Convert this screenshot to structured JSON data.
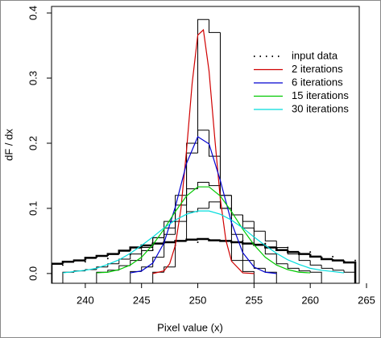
{
  "chart_data": {
    "type": "line",
    "x_label": "Pixel value (x)",
    "y_label": "dF / dx",
    "xlim": [
      237,
      265
    ],
    "ylim": [
      -0.015,
      0.41
    ],
    "xticks": [
      240,
      245,
      250,
      255,
      260,
      265
    ],
    "yticks": [
      {
        "value": 0,
        "label": "0.0"
      },
      0.1,
      0.2,
      0.3,
      0.4
    ],
    "legend": "upper right",
    "histograms": [
      {
        "color": "#000000",
        "linewidth": 1,
        "bins": [
          246,
          247,
          248,
          249,
          250,
          251,
          252,
          253,
          254,
          255
        ],
        "values": [
          0.002,
          0.01,
          0.05,
          0.2,
          0.39,
          0.37,
          0.1,
          0.02,
          0.003
        ]
      },
      {
        "color": "#000000",
        "linewidth": 1,
        "bins": [
          244,
          245,
          246,
          247,
          248,
          249,
          250,
          251,
          252,
          253,
          254,
          255,
          256,
          257
        ],
        "values": [
          0.003,
          0.01,
          0.025,
          0.06,
          0.12,
          0.185,
          0.22,
          0.18,
          0.12,
          0.06,
          0.02,
          0.008,
          0.002
        ]
      },
      {
        "color": "#000000",
        "linewidth": 1,
        "bins": [
          241,
          242,
          243,
          244,
          245,
          246,
          247,
          248,
          249,
          250,
          251,
          252,
          253,
          254,
          255,
          256,
          257,
          258,
          259,
          260,
          261
        ],
        "values": [
          0.002,
          0.005,
          0.012,
          0.02,
          0.035,
          0.055,
          0.08,
          0.105,
          0.13,
          0.14,
          0.135,
          0.12,
          0.09,
          0.07,
          0.045,
          0.03,
          0.015,
          0.008,
          0.004,
          0.002
        ]
      },
      {
        "color": "#000000",
        "linewidth": 1,
        "bins": [
          238,
          239,
          240,
          241,
          242,
          243,
          244,
          245,
          246,
          247,
          248,
          249,
          250,
          251,
          252,
          253,
          254,
          255,
          256,
          257,
          258,
          259,
          260,
          261,
          262,
          263,
          264
        ],
        "values": [
          0.002,
          0.004,
          0.006,
          0.01,
          0.015,
          0.022,
          0.03,
          0.04,
          0.055,
          0.07,
          0.08,
          0.095,
          0.1,
          0.11,
          0.1,
          0.09,
          0.08,
          0.065,
          0.05,
          0.04,
          0.03,
          0.02,
          0.013,
          0.008,
          0.005,
          0.002
        ]
      },
      {
        "color": "#000000",
        "linewidth": 2.5,
        "bins": [
          237,
          238,
          239,
          240,
          241,
          242,
          243,
          244,
          245,
          246,
          247,
          248,
          249,
          250,
          251,
          252,
          253,
          254,
          255,
          256,
          257,
          258,
          259,
          260,
          261,
          262,
          263,
          264
        ],
        "values": [
          0.015,
          0.018,
          0.02,
          0.024,
          0.027,
          0.03,
          0.035,
          0.04,
          0.043,
          0.046,
          0.048,
          0.05,
          0.052,
          0.053,
          0.051,
          0.05,
          0.048,
          0.046,
          0.044,
          0.04,
          0.036,
          0.033,
          0.03,
          0.026,
          0.022,
          0.02,
          0.017
        ]
      }
    ],
    "series": [
      {
        "name": "input data",
        "color": "#000000",
        "style": "dotted",
        "x": [
          238,
          240,
          242,
          244,
          246,
          248,
          250,
          252,
          254,
          256,
          258,
          260,
          262,
          264
        ],
        "values": [
          0.013,
          0.018,
          0.023,
          0.029,
          0.036,
          0.043,
          0.048,
          0.051,
          0.05,
          0.046,
          0.04,
          0.033,
          0.026,
          0.02
        ]
      },
      {
        "name": "2 iterations",
        "color": "#d00000",
        "style": "solid",
        "x": [
          246,
          247,
          247.5,
          248,
          248.5,
          249,
          249.5,
          250,
          250.5,
          251,
          251.5,
          252,
          252.5,
          253,
          254,
          255
        ],
        "values": [
          0.0,
          0.004,
          0.015,
          0.043,
          0.099,
          0.189,
          0.292,
          0.366,
          0.374,
          0.311,
          0.21,
          0.115,
          0.051,
          0.019,
          0.001,
          0.0
        ]
      },
      {
        "name": "6 iterations",
        "color": "#0000d0",
        "style": "solid",
        "x": [
          244,
          245,
          246,
          247,
          248,
          249,
          250,
          251,
          252,
          253,
          254,
          255,
          256,
          257
        ],
        "values": [
          0.001,
          0.004,
          0.016,
          0.047,
          0.102,
          0.169,
          0.21,
          0.199,
          0.143,
          0.078,
          0.032,
          0.01,
          0.002,
          0.0
        ]
      },
      {
        "name": "15 iterations",
        "color": "#00c800",
        "style": "solid",
        "x": [
          241,
          242,
          243,
          244,
          245,
          246,
          247,
          248,
          249,
          250,
          251,
          252,
          253,
          254,
          255,
          256,
          257,
          258,
          259,
          260
        ],
        "values": [
          0.001,
          0.002,
          0.006,
          0.013,
          0.025,
          0.044,
          0.068,
          0.095,
          0.119,
          0.133,
          0.133,
          0.119,
          0.095,
          0.068,
          0.044,
          0.025,
          0.013,
          0.006,
          0.002,
          0.001
        ]
      },
      {
        "name": "30 iterations",
        "color": "#00dcdc",
        "style": "solid",
        "x": [
          238,
          239,
          240,
          241,
          242,
          243,
          244,
          245,
          246,
          247,
          248,
          249,
          250,
          251,
          252,
          253,
          254,
          255,
          256,
          257,
          258,
          259,
          260,
          261,
          262,
          263
        ],
        "values": [
          0.001,
          0.003,
          0.005,
          0.008,
          0.014,
          0.021,
          0.031,
          0.043,
          0.056,
          0.07,
          0.082,
          0.091,
          0.096,
          0.096,
          0.091,
          0.082,
          0.07,
          0.056,
          0.043,
          0.031,
          0.021,
          0.014,
          0.008,
          0.005,
          0.003,
          0.001
        ]
      }
    ]
  }
}
